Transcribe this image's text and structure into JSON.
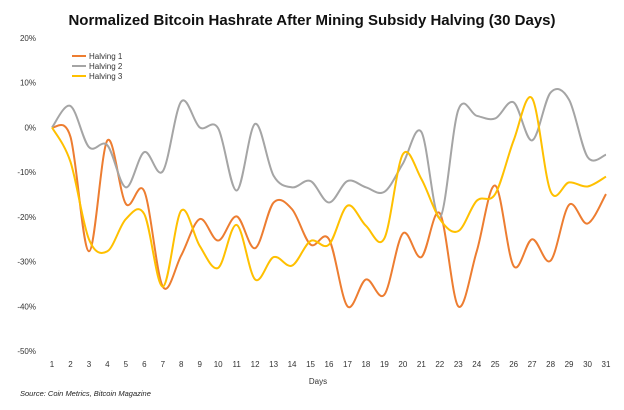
{
  "chart_data": {
    "type": "line",
    "title": "Normalized Bitcoin Hashrate After Mining Subsidy Halving (30 Days)",
    "xlabel": "Days",
    "ylabel": "",
    "source": "Source: Coin Metrics, Bitcoin Magazine",
    "x": [
      1,
      2,
      3,
      4,
      5,
      6,
      7,
      8,
      9,
      10,
      11,
      12,
      13,
      14,
      15,
      16,
      17,
      18,
      19,
      20,
      21,
      22,
      23,
      24,
      25,
      26,
      27,
      28,
      29,
      30,
      31
    ],
    "ylim": [
      -50,
      20
    ],
    "yticks": [
      20,
      10,
      0,
      -10,
      -20,
      -30,
      -40,
      -50
    ],
    "ytick_labels": [
      "20%",
      "10%",
      "0%",
      "-10%",
      "-20%",
      "-30%",
      "-40%",
      "-50%"
    ],
    "grid": false,
    "smooth": true,
    "legend_position": "top-left",
    "series": [
      {
        "name": "Halving 1",
        "color": "#ED7D31",
        "values": [
          0,
          -2.1,
          -27.7,
          -2.9,
          -17.1,
          -14.3,
          -35.6,
          -28.6,
          -20.5,
          -25.3,
          -19.9,
          -27,
          -16.8,
          -18.3,
          -26.2,
          -25,
          -40,
          -34,
          -37.4,
          -23.7,
          -29,
          -19.2,
          -40,
          -27.7,
          -13,
          -31,
          -25,
          -29.8,
          -17.3,
          -21.5,
          -14.9
        ]
      },
      {
        "name": "Halving 2",
        "color": "#A5A5A5",
        "values": [
          0,
          4.8,
          -4.4,
          -4,
          -13.4,
          -5.5,
          -9.8,
          5.8,
          0,
          -0.2,
          -14.1,
          0.8,
          -10.8,
          -13.4,
          -12,
          -16.8,
          -12,
          -13.4,
          -14.4,
          -8.1,
          -1,
          -20.2,
          3.9,
          2.6,
          2,
          5.6,
          -2.9,
          7.8,
          6.2,
          -6.6,
          -6.1
        ]
      },
      {
        "name": "Halving 3",
        "color": "#FFC000",
        "values": [
          0,
          -7.7,
          -25,
          -27.7,
          -20.5,
          -19.4,
          -35.6,
          -18.6,
          -26.5,
          -31.4,
          -21.8,
          -34,
          -29,
          -30.9,
          -25.4,
          -26.2,
          -17.5,
          -22,
          -24.8,
          -6,
          -11.5,
          -20.5,
          -23.2,
          -16.4,
          -14.9,
          -2.9,
          6.5,
          -14.3,
          -12.3,
          -13.2,
          -11
        ]
      }
    ]
  }
}
